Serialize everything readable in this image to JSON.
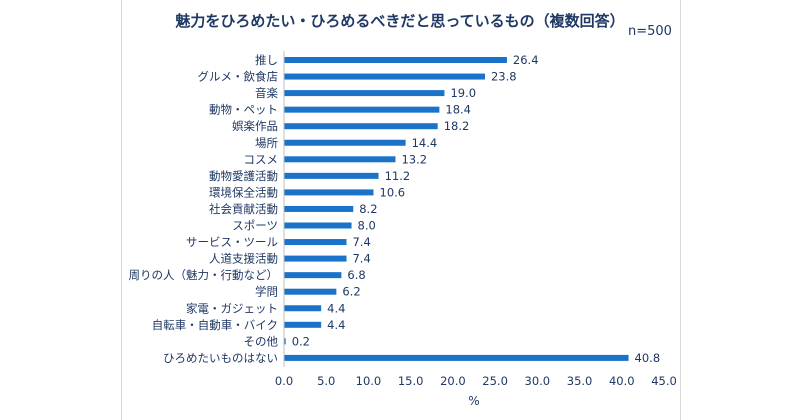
{
  "chart_data": {
    "type": "bar",
    "orientation": "horizontal",
    "title": "魅力をひろめたい・ひろめるべきだと思っているもの（複数回答）",
    "note": "n=500",
    "xlabel": "%",
    "xlim": [
      0,
      45
    ],
    "xticks": [
      "0.0",
      "5.0",
      "10.0",
      "15.0",
      "20.0",
      "25.0",
      "30.0",
      "35.0",
      "40.0",
      "45.0"
    ],
    "grid": false,
    "bar_color": "#1a73c8",
    "categories": [
      "推し",
      "グルメ・飲食店",
      "音楽",
      "動物・ペット",
      "娯楽作品",
      "場所",
      "コスメ",
      "動物愛護活動",
      "環境保全活動",
      "社会貢献活動",
      "スポーツ",
      "サービス・ツール",
      "人道支援活動",
      "周りの人（魅力・行動など）",
      "学問",
      "家電・ガジェット",
      "自転車・自動車・バイク",
      "その他",
      "ひろめたいものはない"
    ],
    "values": [
      26.4,
      23.8,
      19.0,
      18.4,
      18.2,
      14.4,
      13.2,
      11.2,
      10.6,
      8.2,
      8.0,
      7.4,
      7.4,
      6.8,
      6.2,
      4.4,
      4.4,
      0.2,
      40.8
    ],
    "value_labels": [
      "26.4",
      "23.8",
      "19.0",
      "18.4",
      "18.2",
      "14.4",
      "13.2",
      "11.2",
      "10.6",
      "8.2",
      "8.0",
      "7.4",
      "7.4",
      "6.8",
      "6.2",
      "4.4",
      "4.4",
      "0.2",
      "40.8"
    ]
  }
}
